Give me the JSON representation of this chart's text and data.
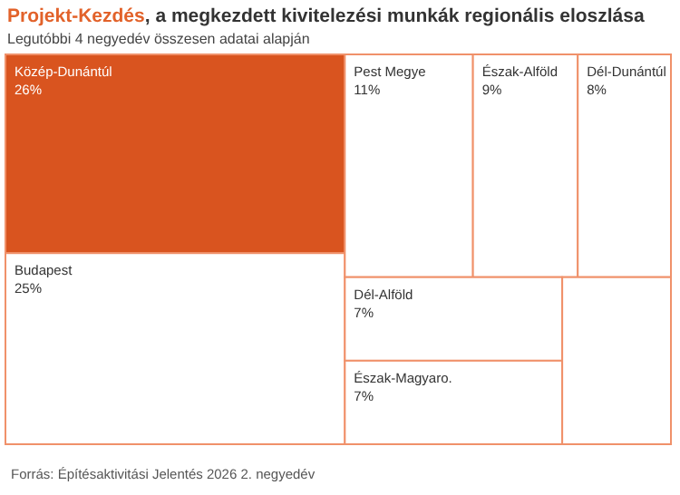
{
  "chart_data": {
    "type": "other",
    "title": "Projekt-Kezdés, a megkezdett kivitelezési munkák regionális eloszlása",
    "subtitle": "Legutóbbi 4 negyedév összesen adatai alapján",
    "categories": [
      "Közép-Dunántúl",
      "Budapest",
      "Pest Megye",
      "Észak-Alföld",
      "Dél-Dunántúl",
      "Dél-Alföld",
      "Észak-Magyaro.",
      null
    ],
    "values": [
      26,
      25,
      11,
      9,
      8,
      7,
      7,
      null
    ],
    "value_labels": [
      "26%",
      "25%",
      "11%",
      "9%",
      "8%",
      "7%",
      "7%",
      null
    ],
    "colors": [
      "#d9541f",
      "#ffffff",
      "#ffffff",
      "#ffffff",
      "#ffffff",
      "#ffffff",
      "#ffffff",
      "#ffffff"
    ],
    "annotations": [
      "Forrás: Építésaktivitási Jelentés 2026 2. negyedév"
    ]
  }
}
